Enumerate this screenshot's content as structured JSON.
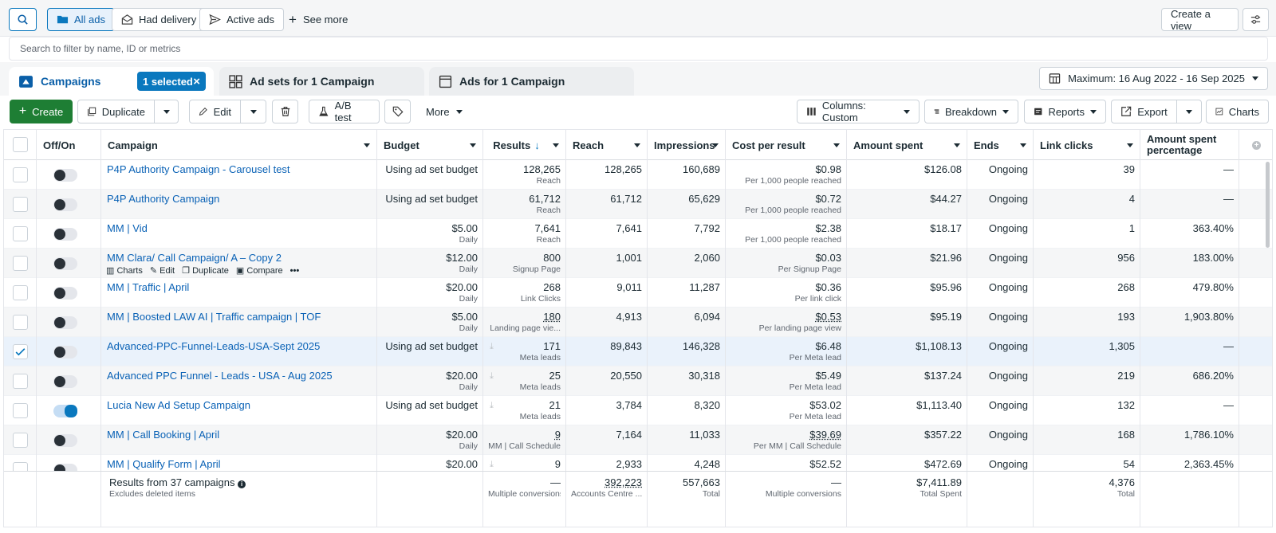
{
  "topbar": {
    "all_ads": "All ads",
    "had_delivery": "Had delivery",
    "active_ads": "Active ads",
    "see_more": "See more",
    "create_view": "Create a view"
  },
  "search": {
    "placeholder": "Search to filter by name, ID or metrics"
  },
  "tabs": {
    "campaigns": "Campaigns",
    "selected": "1 selected",
    "adsets": "Ad sets for 1 Campaign",
    "ads": "Ads for 1 Campaign",
    "date_range": "Maximum: 16 Aug 2022 - 16 Sep 2025"
  },
  "toolbar": {
    "create": "Create",
    "duplicate": "Duplicate",
    "edit": "Edit",
    "ab_test": "A/B test",
    "more": "More",
    "columns": "Columns: Custom",
    "breakdown": "Breakdown",
    "reports": "Reports",
    "export": "Export",
    "charts": "Charts"
  },
  "headers": {
    "offon": "Off/On",
    "campaign": "Campaign",
    "budget": "Budget",
    "results": "Results",
    "reach": "Reach",
    "impressions": "Impressions",
    "cpr": "Cost per result",
    "spent": "Amount spent",
    "ends": "Ends",
    "clicks": "Link clicks",
    "pct": "Amount spent percentage"
  },
  "hover_actions": {
    "charts": "Charts",
    "edit": "Edit",
    "duplicate": "Duplicate",
    "compare": "Compare"
  },
  "rows": [
    {
      "name": "P4P Authority Campaign - Carousel test",
      "budget": "Using ad set budget",
      "budget_sub": "",
      "results": "128,265",
      "results_sub": "Reach",
      "reach": "128,265",
      "impr": "160,689",
      "cpr": "$0.98",
      "cpr_sub": "Per 1,000 people reached",
      "spent": "$126.08",
      "ends": "Ongoing",
      "clicks": "39",
      "pct": "—",
      "on": false,
      "checked": false
    },
    {
      "name": "P4P Authority Campaign",
      "budget": "Using ad set budget",
      "budget_sub": "",
      "results": "61,712",
      "results_sub": "Reach",
      "reach": "61,712",
      "impr": "65,629",
      "cpr": "$0.72",
      "cpr_sub": "Per 1,000 people reached",
      "spent": "$44.27",
      "ends": "Ongoing",
      "clicks": "4",
      "pct": "—",
      "on": false,
      "checked": false
    },
    {
      "name": "MM | Vid",
      "budget": "$5.00",
      "budget_sub": "Daily",
      "results": "7,641",
      "results_sub": "Reach",
      "reach": "7,641",
      "impr": "7,792",
      "cpr": "$2.38",
      "cpr_sub": "Per 1,000 people reached",
      "spent": "$18.17",
      "ends": "Ongoing",
      "clicks": "1",
      "pct": "363.40%",
      "on": false,
      "checked": false
    },
    {
      "name": "MM Clara/ Call Campaign/ A – Copy 2",
      "budget": "$12.00",
      "budget_sub": "Daily",
      "results": "800",
      "results_sub": "Signup Page",
      "reach": "1,001",
      "impr": "2,060",
      "cpr": "$0.03",
      "cpr_sub": "Per Signup Page",
      "spent": "$21.96",
      "ends": "Ongoing",
      "clicks": "956",
      "pct": "183.00%",
      "on": false,
      "checked": false
    },
    {
      "name": "MM | Traffic | April",
      "budget": "$20.00",
      "budget_sub": "Daily",
      "results": "268",
      "results_sub": "Link Clicks",
      "reach": "9,011",
      "impr": "11,287",
      "cpr": "$0.36",
      "cpr_sub": "Per link click",
      "spent": "$95.96",
      "ends": "Ongoing",
      "clicks": "268",
      "pct": "479.80%",
      "on": false,
      "checked": false
    },
    {
      "name": "MM | Boosted LAW AI | Traffic campaign | TOF",
      "budget": "$5.00",
      "budget_sub": "Daily",
      "results": "180",
      "results_sub": "Landing page vie...",
      "reach": "4,913",
      "impr": "6,094",
      "cpr": "$0.53",
      "cpr_sub": "Per landing page view",
      "spent": "$95.19",
      "ends": "Ongoing",
      "clicks": "193",
      "pct": "1,903.80%",
      "on": false,
      "checked": false
    },
    {
      "name": "Advanced-PPC-Funnel-Leads-USA-Sept 2025",
      "budget": "Using ad set budget",
      "budget_sub": "",
      "results": "171",
      "results_sub": "Meta leads",
      "reach": "89,843",
      "impr": "146,328",
      "cpr": "$6.48",
      "cpr_sub": "Per Meta lead",
      "spent": "$1,108.13",
      "ends": "Ongoing",
      "clicks": "1,305",
      "pct": "—",
      "on": false,
      "checked": true
    },
    {
      "name": "Advanced PPC Funnel - Leads - USA - Aug 2025",
      "budget": "$20.00",
      "budget_sub": "Daily",
      "results": "25",
      "results_sub": "Meta leads",
      "reach": "20,550",
      "impr": "30,318",
      "cpr": "$5.49",
      "cpr_sub": "Per Meta lead",
      "spent": "$137.24",
      "ends": "Ongoing",
      "clicks": "219",
      "pct": "686.20%",
      "on": false,
      "checked": false
    },
    {
      "name": "Lucia New Ad Setup Campaign",
      "budget": "Using ad set budget",
      "budget_sub": "",
      "results": "21",
      "results_sub": "Meta leads",
      "reach": "3,784",
      "impr": "8,320",
      "cpr": "$53.02",
      "cpr_sub": "Per Meta lead",
      "spent": "$1,113.40",
      "ends": "Ongoing",
      "clicks": "132",
      "pct": "—",
      "on": true,
      "checked": false
    },
    {
      "name": "MM | Call Booking | April",
      "budget": "$20.00",
      "budget_sub": "Daily",
      "results": "9",
      "results_sub": "MM | Call Schedule",
      "reach": "7,164",
      "impr": "11,033",
      "cpr": "$39.69",
      "cpr_sub": "Per MM | Call Schedule",
      "spent": "$357.22",
      "ends": "Ongoing",
      "clicks": "168",
      "pct": "1,786.10%",
      "on": false,
      "checked": false
    },
    {
      "name": "MM | Qualify Form | April",
      "budget": "$20.00",
      "budget_sub": "",
      "results": "9",
      "results_sub": "",
      "reach": "2,933",
      "impr": "4,248",
      "cpr": "$52.52",
      "cpr_sub": "",
      "spent": "$472.69",
      "ends": "Ongoing",
      "clicks": "54",
      "pct": "2,363.45%",
      "on": false,
      "checked": false
    }
  ],
  "footer": {
    "title": "Results from 37 campaigns",
    "subtitle": "Excludes deleted items",
    "results": "—",
    "results_sub": "Multiple conversions",
    "reach": "392,223",
    "reach_sub": "Accounts Centre ...",
    "impr": "557,663",
    "impr_sub": "Total",
    "cpr": "—",
    "cpr_sub": "Multiple conversions",
    "spent": "$7,411.89",
    "spent_sub": "Total Spent",
    "clicks": "4,376",
    "clicks_sub": "Total"
  }
}
